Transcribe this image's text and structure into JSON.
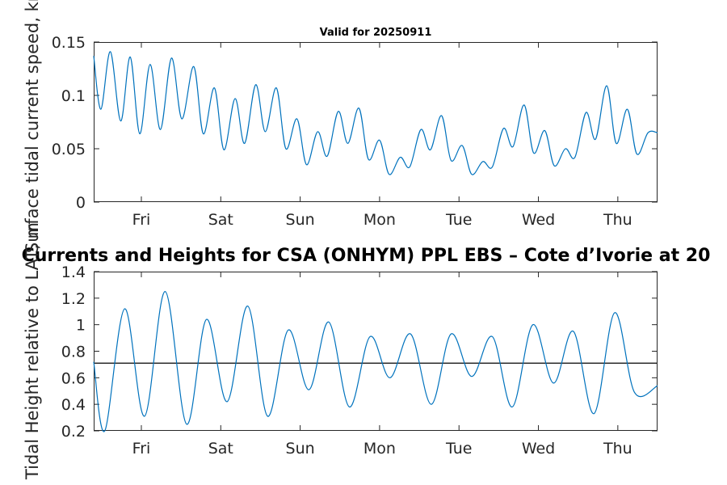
{
  "chart_data": [
    {
      "type": "line",
      "title": "Valid for 20250911",
      "ylabel": "Surface tidal current speed, kn",
      "xlim": [
        0,
        7.1
      ],
      "ylim": [
        0,
        0.15
      ],
      "yticks": [
        0,
        0.05,
        0.1,
        0.15
      ],
      "ytick_labels": [
        "0",
        "0.05",
        "0.1",
        "0.15"
      ],
      "xticks": [
        0.6,
        1.6,
        2.6,
        3.6,
        4.6,
        5.6,
        6.6
      ],
      "xtick_labels": [
        "Fri",
        "Sat",
        "Sun",
        "Mon",
        "Tue",
        "Wed",
        "Thu"
      ],
      "grid": false,
      "series": [
        {
          "color": "#0072bd",
          "x": [
            0.0,
            0.09,
            0.21,
            0.34,
            0.46,
            0.58,
            0.71,
            0.84,
            0.98,
            1.11,
            1.26,
            1.38,
            1.52,
            1.64,
            1.78,
            1.9,
            2.04,
            2.16,
            2.3,
            2.42,
            2.56,
            2.68,
            2.82,
            2.94,
            3.08,
            3.2,
            3.34,
            3.46,
            3.6,
            3.72,
            3.86,
            3.98,
            4.12,
            4.24,
            4.38,
            4.5,
            4.64,
            4.76,
            4.9,
            5.02,
            5.16,
            5.28,
            5.42,
            5.54,
            5.68,
            5.8,
            5.94,
            6.06,
            6.2,
            6.32,
            6.46,
            6.58,
            6.72,
            6.84,
            6.98,
            7.1
          ],
          "y": [
            0.137,
            0.087,
            0.141,
            0.076,
            0.136,
            0.064,
            0.129,
            0.068,
            0.135,
            0.078,
            0.127,
            0.064,
            0.107,
            0.049,
            0.097,
            0.055,
            0.11,
            0.066,
            0.107,
            0.05,
            0.078,
            0.035,
            0.066,
            0.043,
            0.085,
            0.055,
            0.088,
            0.04,
            0.058,
            0.026,
            0.042,
            0.033,
            0.068,
            0.049,
            0.081,
            0.039,
            0.053,
            0.026,
            0.038,
            0.033,
            0.069,
            0.052,
            0.091,
            0.046,
            0.067,
            0.034,
            0.05,
            0.042,
            0.084,
            0.059,
            0.109,
            0.055,
            0.087,
            0.045,
            0.065,
            0.065
          ]
        }
      ]
    },
    {
      "type": "line",
      "title": "Currents and Heights for CSA (ONHYM) PPL EBS  – Cote d’Ivorie at 20",
      "ylabel": "Tidal Height relative to LAT, m",
      "xlim": [
        0,
        7.1
      ],
      "ylim": [
        0.2,
        1.4
      ],
      "yticks": [
        0.2,
        0.4,
        0.6,
        0.8,
        1.0,
        1.2,
        1.4
      ],
      "ytick_labels": [
        "0.2",
        "0.4",
        "0.6",
        "0.8",
        "1",
        "1.2",
        "1.4"
      ],
      "xticks": [
        0.6,
        1.6,
        2.6,
        3.6,
        4.6,
        5.6,
        6.6
      ],
      "xtick_labels": [
        "Fri",
        "Sat",
        "Sun",
        "Mon",
        "Tue",
        "Wed",
        "Thu"
      ],
      "grid": false,
      "reference_line": 0.71,
      "series": [
        {
          "color": "#0072bd",
          "x": [
            0.0,
            0.14,
            0.39,
            0.64,
            0.9,
            1.17,
            1.42,
            1.68,
            1.94,
            2.19,
            2.45,
            2.71,
            2.96,
            3.22,
            3.48,
            3.73,
            3.99,
            4.25,
            4.5,
            4.76,
            5.02,
            5.27,
            5.53,
            5.79,
            6.04,
            6.3,
            6.56,
            6.81,
            7.1
          ],
          "y": [
            0.72,
            0.2,
            1.12,
            0.31,
            1.25,
            0.25,
            1.04,
            0.42,
            1.14,
            0.31,
            0.96,
            0.51,
            1.02,
            0.38,
            0.91,
            0.6,
            0.93,
            0.4,
            0.93,
            0.61,
            0.91,
            0.38,
            1.0,
            0.56,
            0.95,
            0.33,
            1.09,
            0.49,
            0.54
          ]
        }
      ]
    }
  ]
}
